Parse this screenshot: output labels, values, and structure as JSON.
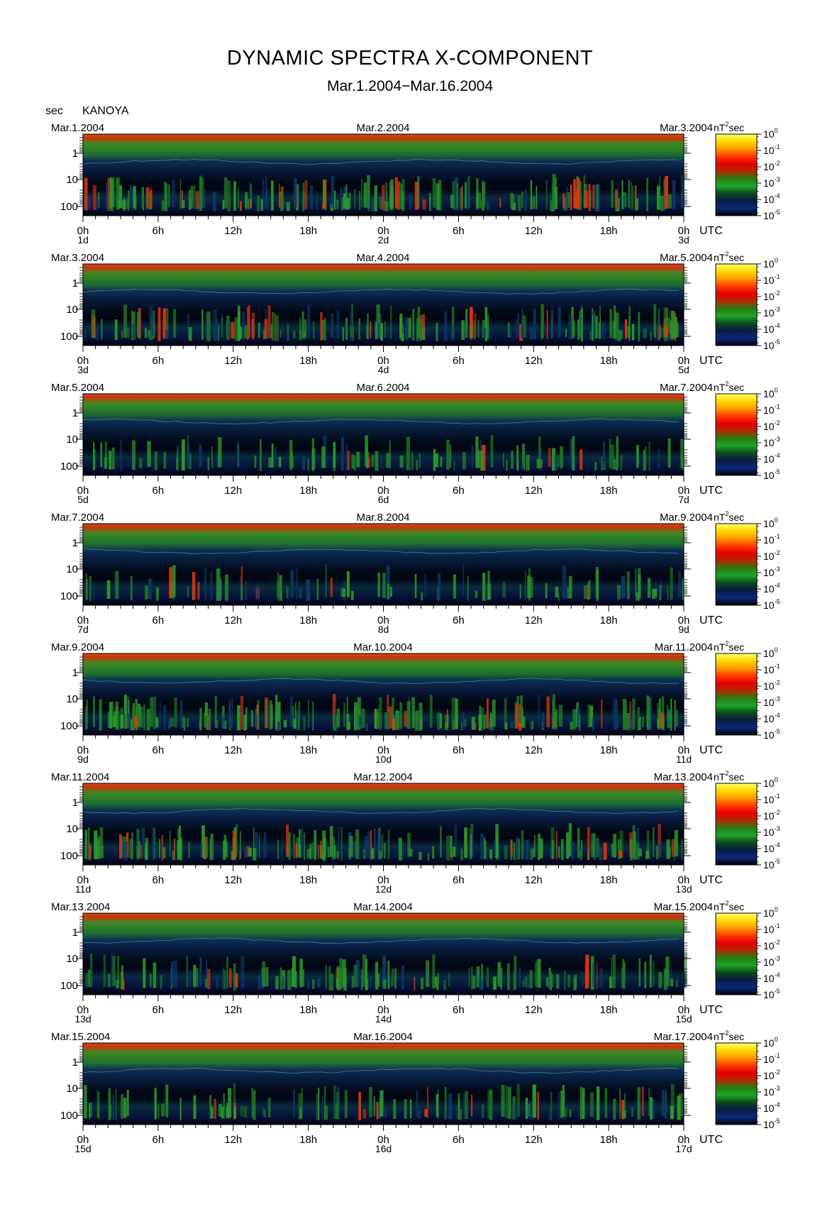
{
  "title": "DYNAMIC SPECTRA X-COMPONENT",
  "subtitle": "Mar.1.2004−Mar.16.2004",
  "unit_label": "sec",
  "station": "KANOYA",
  "colorbar": {
    "unit_base": "nT",
    "unit_exp": "2",
    "unit_tail": "sec",
    "ticks": [
      {
        "base": "10",
        "exp": "0"
      },
      {
        "base": "10",
        "exp": "-1"
      },
      {
        "base": "10",
        "exp": "-2"
      },
      {
        "base": "10",
        "exp": "-3"
      },
      {
        "base": "10",
        "exp": "-4"
      },
      {
        "base": "10",
        "exp": "-5"
      }
    ],
    "stops": [
      "#ffff66",
      "#ffd700",
      "#ff9a00",
      "#ff3a00",
      "#e60000",
      "#b22a00",
      "#2a7a10",
      "#1fa52a",
      "#0b4a1a",
      "#0a1a44",
      "#0a2a7a",
      "#000000"
    ]
  },
  "chart_data": {
    "type": "heatmap",
    "x_axis": {
      "tick_labels": [
        "0h",
        "6h",
        "12h",
        "18h",
        "0h",
        "6h",
        "12h",
        "18h",
        "0h"
      ],
      "unit": "UTC"
    },
    "y_axis": {
      "tick_labels": [
        "1",
        "10",
        "100"
      ],
      "period_ticks_sec": [
        1,
        10,
        100
      ],
      "log_scale": true,
      "inverted": true
    },
    "panels": [
      {
        "date_left": "Mar.1.2004",
        "date_mid": "Mar.2.2004",
        "date_right": "Mar.3.2004",
        "day_left": "1d",
        "day_mid": "2d",
        "day_right": "3d"
      },
      {
        "date_left": "Mar.3.2004",
        "date_mid": "Mar.4.2004",
        "date_right": "Mar.5.2004",
        "day_left": "3d",
        "day_mid": "4d",
        "day_right": "5d"
      },
      {
        "date_left": "Mar.5.2004",
        "date_mid": "Mar.6.2004",
        "date_right": "Mar.7.2004",
        "day_left": "5d",
        "day_mid": "6d",
        "day_right": "7d"
      },
      {
        "date_left": "Mar.7.2004",
        "date_mid": "Mar.8.2004",
        "date_right": "Mar.9.2004",
        "day_left": "7d",
        "day_mid": "8d",
        "day_right": "9d"
      },
      {
        "date_left": "Mar.9.2004",
        "date_mid": "Mar.10.2004",
        "date_right": "Mar.11.2004",
        "day_left": "9d",
        "day_mid": "10d",
        "day_right": "11d"
      },
      {
        "date_left": "Mar.11.2004",
        "date_mid": "Mar.12.2004",
        "date_right": "Mar.13.2004",
        "day_left": "11d",
        "day_mid": "12d",
        "day_right": "13d"
      },
      {
        "date_left": "Mar.13.2004",
        "date_mid": "Mar.14.2004",
        "date_right": "Mar.15.2004",
        "day_left": "13d",
        "day_mid": "14d",
        "day_right": "15d"
      },
      {
        "date_left": "Mar.15.2004",
        "date_mid": "Mar.16.2004",
        "date_right": "Mar.17.2004",
        "day_left": "15d",
        "day_mid": "16d",
        "day_right": "17d"
      }
    ]
  }
}
